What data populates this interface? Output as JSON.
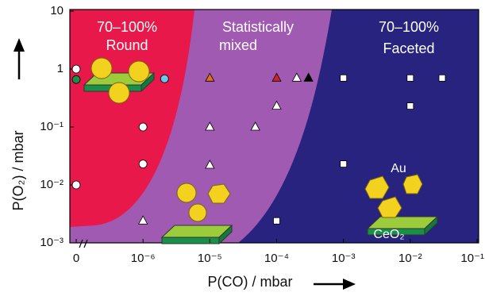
{
  "chart_data": {
    "type": "scatter",
    "x_label": "P(CO) / mbar",
    "y_label": "P(O₂) / mbar",
    "xscale": "log",
    "yscale": "log",
    "xlim": [
      1e-07,
      0.1
    ],
    "ylim": [
      0.001,
      10
    ],
    "xticks": [
      0,
      {
        "value": 1e-06,
        "label": "10⁻⁶"
      },
      {
        "value": 1e-05,
        "label": "10⁻⁵"
      },
      {
        "value": 0.0001,
        "label": "10⁻⁴"
      },
      {
        "value": 0.001,
        "label": "10⁻³"
      },
      {
        "value": 0.01,
        "label": "10⁻²"
      },
      {
        "value": 0.1,
        "label": "10⁻¹"
      }
    ],
    "yticks": [
      {
        "value": 0.001,
        "label": "10⁻³"
      },
      {
        "value": 0.01,
        "label": "10⁻²"
      },
      {
        "value": 0.1,
        "label": "10⁻¹"
      },
      1,
      10
    ],
    "annotations": [
      "70–100%",
      "Round",
      "Statistically",
      "mixed",
      "70–100%",
      "Faceted",
      "Au",
      "CeO₂"
    ],
    "series": [
      {
        "marker": "circle",
        "color": "#ffffff",
        "x": [
          0,
          0,
          1e-06,
          1e-06
        ],
        "values": [
          1,
          0.01,
          0.1,
          0.023
        ]
      },
      {
        "marker": "circle",
        "color": "#1a8f4a",
        "x": [
          0
        ],
        "values": [
          0.66
        ]
      },
      {
        "marker": "circle",
        "color": "#6ec6e8",
        "x": [
          2.1e-06
        ],
        "values": [
          0.68
        ]
      },
      {
        "marker": "triangle",
        "color": "#ffffff",
        "x": [
          1e-06,
          1e-05,
          1e-05,
          4.8e-05,
          0.0001,
          0.0002
        ],
        "values": [
          0.0024,
          0.1,
          0.022,
          0.1,
          0.23,
          0.7
        ]
      },
      {
        "marker": "triangle",
        "color": "#e07020",
        "x": [
          1e-05
        ],
        "values": [
          0.7
        ]
      },
      {
        "marker": "triangle",
        "color": "#d0202a",
        "x": [
          0.0001
        ],
        "values": [
          0.7
        ]
      },
      {
        "marker": "triangle",
        "color": "#000000",
        "x": [
          0.0003
        ],
        "values": [
          0.7
        ]
      },
      {
        "marker": "square",
        "color": "#ffffff",
        "x": [
          0.0001,
          0.001,
          0.01,
          0.03,
          0.01,
          0.001
        ],
        "values": [
          0.0024,
          0.7,
          0.7,
          0.7,
          0.23,
          0.023
        ]
      }
    ]
  }
}
